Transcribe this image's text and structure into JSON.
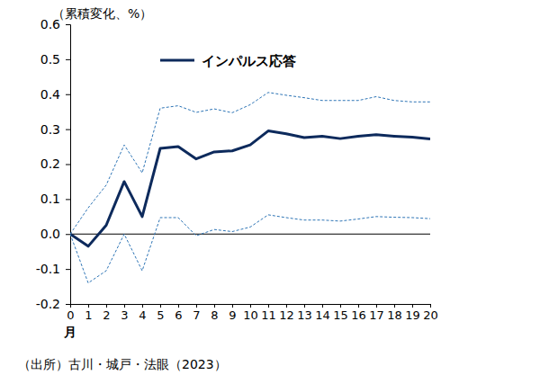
{
  "chart_data": {
    "type": "line",
    "ylabel": "（累積変化、%）",
    "xlabel": "月",
    "source": "（出所）古川・城戸・法眼（2023）",
    "x": [
      0,
      1,
      2,
      3,
      4,
      5,
      6,
      7,
      8,
      9,
      10,
      11,
      12,
      13,
      14,
      15,
      16,
      17,
      18,
      19,
      20
    ],
    "xlim": [
      0,
      20
    ],
    "xticks": [
      0,
      1,
      2,
      3,
      4,
      5,
      6,
      7,
      8,
      9,
      10,
      11,
      12,
      13,
      14,
      15,
      16,
      17,
      18,
      19,
      20
    ],
    "ylim": [
      -0.2,
      0.6
    ],
    "yticks": [
      0.6,
      0.5,
      0.4,
      0.3,
      0.2,
      0.1,
      {
        "value": 0,
        "label": "0.0"
      },
      -0.1,
      -0.2
    ],
    "legend": "top-left",
    "grid": false,
    "series": [
      {
        "name": "インパルス応答",
        "color": "#0d2a5c",
        "line_style": "solid",
        "values": [
          0.0,
          -0.035,
          0.025,
          0.15,
          0.05,
          0.245,
          0.25,
          0.215,
          0.235,
          0.238,
          0.255,
          0.295,
          0.287,
          0.276,
          0.28,
          0.273,
          0.28,
          0.284,
          0.28,
          0.277,
          0.272
        ]
      },
      {
        "color": "#2e75b6",
        "line_style": "dashed",
        "values": [
          0.0,
          0.075,
          0.14,
          0.255,
          0.175,
          0.36,
          0.367,
          0.348,
          0.358,
          0.347,
          0.37,
          0.405,
          0.397,
          0.39,
          0.382,
          0.382,
          0.382,
          0.393,
          0.382,
          0.378,
          0.378
        ]
      },
      {
        "color": "#2e75b6",
        "line_style": "dashed",
        "values": [
          0.0,
          -0.14,
          -0.105,
          0.0,
          -0.105,
          0.047,
          0.047,
          -0.005,
          0.013,
          0.007,
          0.02,
          0.055,
          0.047,
          0.04,
          0.04,
          0.037,
          0.043,
          0.05,
          0.048,
          0.047,
          0.044
        ]
      }
    ]
  }
}
